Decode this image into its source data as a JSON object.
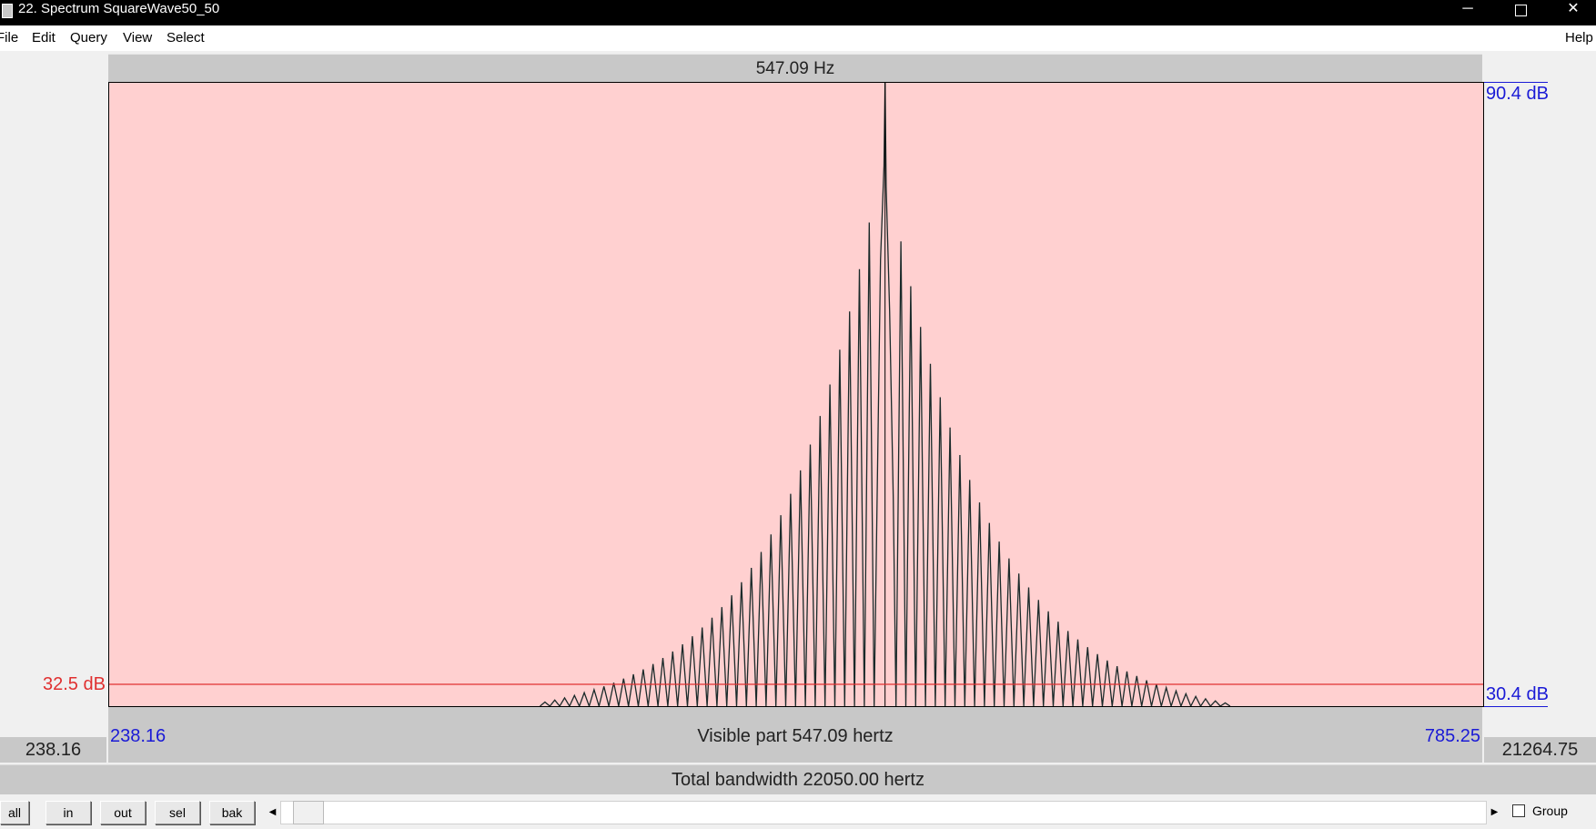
{
  "window": {
    "title": "22. Spectrum SquareWave50_50",
    "minimize_glyph": "─",
    "close_glyph": "✕"
  },
  "menu": {
    "items": [
      "File",
      "Edit",
      "Query",
      "View",
      "Select"
    ],
    "help": "Help"
  },
  "cursor_freq": "547.09 Hz",
  "db_top": "90.4 dB",
  "db_bottom": "30.4 dB",
  "cursor_db": "32.5 dB",
  "visible": {
    "left": "238.16",
    "label": "Visible part 547.09 hertz",
    "right": "785.25"
  },
  "total_left": "238.16",
  "total_right": "21264.75",
  "total_label": "Total bandwidth 22050.00 hertz",
  "buttons": [
    "all",
    "in",
    "out",
    "sel",
    "bak"
  ],
  "scroll": {
    "left_arrow": "◀",
    "right_arrow": "▶"
  },
  "group_label": "Group",
  "colors": {
    "plot_bg": "#ffd0d0",
    "spectrum": "#1a2a2a",
    "cursor_line": "#e03030",
    "axis_text": "#1a1ad6"
  },
  "chart_data": {
    "type": "line",
    "xlim": [
      238.16,
      785.25
    ],
    "ylim": [
      30.4,
      90.4
    ],
    "xlabel": "",
    "ylabel": "",
    "peak": {
      "x": 547.09,
      "y": 90.4
    },
    "cursor_level_db": 32.5,
    "sidelobe_count_each_side": 34
  }
}
